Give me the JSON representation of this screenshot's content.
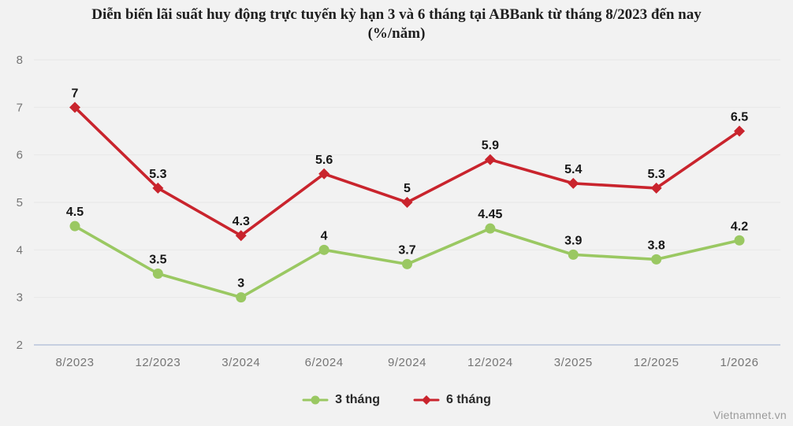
{
  "watermark": "Vietnamnet.vn",
  "style": {
    "background": "#f2f2f2",
    "gridline_color": "#e8e8e8",
    "axis_line_color": "#b7c3da",
    "tick_label_color": "#757575",
    "data_label_color": "#161616",
    "title_color": "#1f1f1f"
  },
  "chart_data": {
    "type": "line",
    "title": "Diễn biến lãi suất huy động trực tuyến kỳ hạn 3 và 6 tháng tại ABBank từ tháng 8/2023 đến nay",
    "subtitle": "(%/năm)",
    "categories": [
      "8/2023",
      "12/2023",
      "3/2024",
      "6/2024",
      "9/2024",
      "12/2024",
      "3/2025",
      "12/2025",
      "1/2026"
    ],
    "series": [
      {
        "name": "3 tháng",
        "color": "#9ac862",
        "marker": "circle",
        "values": [
          4.5,
          3.5,
          3,
          4,
          3.7,
          4.45,
          3.9,
          3.8,
          4.2
        ]
      },
      {
        "name": "6 tháng",
        "color": "#c9242d",
        "marker": "diamond",
        "values": [
          7,
          5.3,
          4.3,
          5.6,
          5,
          5.9,
          5.4,
          5.3,
          6.5
        ]
      }
    ],
    "ylim": [
      2,
      8
    ],
    "ytick_step": 1,
    "grid": true,
    "legend_position": "bottom",
    "data_labels": true
  }
}
